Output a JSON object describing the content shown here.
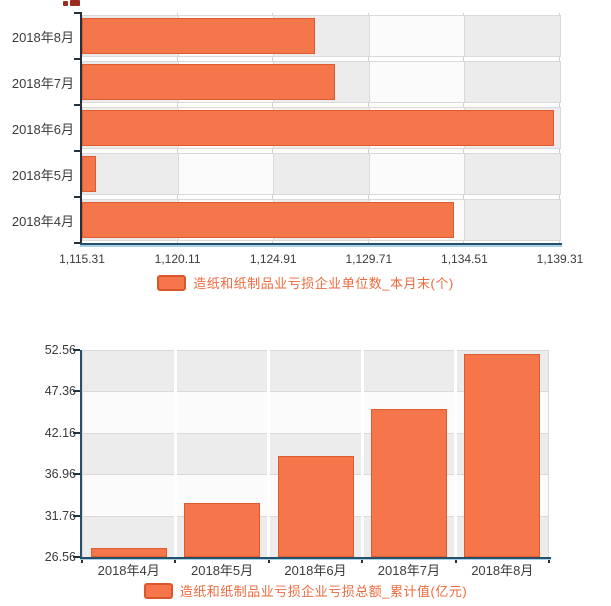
{
  "page": {
    "background": "#ffffff",
    "note_fragment": "clipped dark-red text remnant at top edge (cropped out of view)"
  },
  "colors": {
    "bar_fill": "#f4764a",
    "bar_border": "#de5b2f",
    "cell_gray": "#ececec",
    "cell_white": "#fbfbfb",
    "cell_border": "#d9d9d9",
    "grid_line": "#cfcfcf",
    "axis_dark": "#22313a",
    "axis_navy": "#27506b",
    "axis_light_blue": "#a9d2e6",
    "label_text": "#3b3b3b",
    "legend_text": "#ee6a3d",
    "fragment_red": "#9b2c20"
  },
  "chart_data": [
    {
      "type": "bar",
      "orientation": "horizontal",
      "title": "",
      "legend": "造纸和纸制品业亏损企业单位数_本月末(个)",
      "legend_position": "bottom",
      "categories": [
        "2018年8月",
        "2018年7月",
        "2018年6月",
        "2018年5月",
        "2018年4月"
      ],
      "values": [
        1127,
        1128,
        1139,
        1116,
        1134
      ],
      "xlim": [
        1115.31,
        1139.31
      ],
      "xtick_values": [
        1115.31,
        1120.11,
        1124.91,
        1129.71,
        1134.51,
        1139.31
      ],
      "xtick_labels": [
        "1,115.31",
        "1,120.11",
        "1,124.91",
        "1,129.71",
        "1,134.51",
        "1,139.31"
      ],
      "grid": "checkered column stripes (gray/white alternating), white gaps between rows"
    },
    {
      "type": "bar",
      "orientation": "vertical",
      "title": "",
      "legend": "造纸和纸制品业亏损企业亏损总额_累计值(亿元)",
      "legend_position": "bottom",
      "categories": [
        "2018年4月",
        "2018年5月",
        "2018年6月",
        "2018年7月",
        "2018年8月"
      ],
      "values": [
        27.7,
        33.3,
        39.2,
        45.2,
        52.1
      ],
      "ylim": [
        26.56,
        52.56
      ],
      "ytick_values": [
        52.56,
        47.36,
        42.16,
        36.96,
        31.76,
        26.56
      ],
      "ytick_labels": [
        "52.56",
        "47.36",
        "42.16",
        "36.96",
        "31.76",
        "26.56"
      ],
      "grid": "horizontal bands (gray/white alternating), white separators between columns"
    }
  ]
}
